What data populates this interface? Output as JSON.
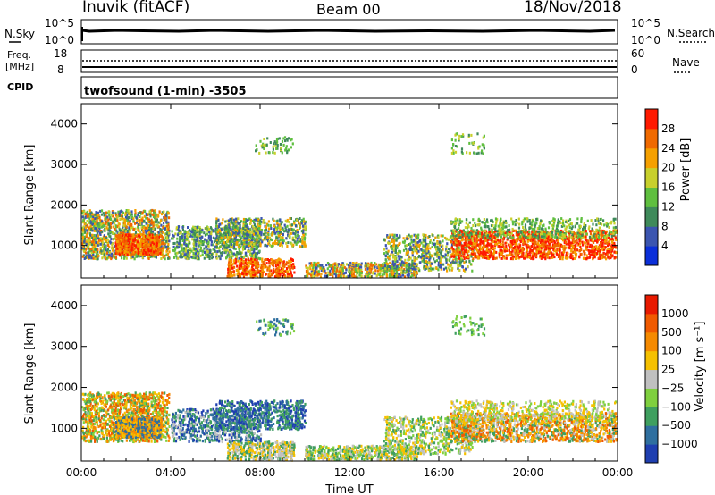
{
  "header": {
    "station": "Inuvik (fitACF)",
    "beam": "Beam 00",
    "date": "18/Nov/2018"
  },
  "top_panels": {
    "nsky_label": "N.Sky",
    "nsky_ticks": [
      "10^5",
      "10^0"
    ],
    "nsearch_label": "N.Search",
    "nsearch_ticks": [
      "10^5",
      "10^0"
    ],
    "freq_label": "Freq.",
    "freq_unit": "[MHz]",
    "freq_ticks": [
      "18",
      "8"
    ],
    "nave_label": "Nave",
    "nave_ticks": [
      "60",
      "0"
    ],
    "cpid_label": "CPID",
    "cpid_value": "twofsound (1-min) -3505"
  },
  "chart_data": [
    {
      "type": "heatmap",
      "name": "power-panel",
      "ylabel": "Slant Range [km]",
      "xlabel": "",
      "x_ticks": [
        "00:00",
        "04:00",
        "08:00",
        "12:00",
        "16:00",
        "20:00",
        "00:00"
      ],
      "y_ticks": [
        "1000",
        "2000",
        "3000",
        "4000"
      ],
      "ylim": [
        200,
        4500
      ],
      "colorbar": {
        "label": "Power [dB]",
        "ticks": [
          "4",
          "8",
          "12",
          "16",
          "20",
          "24",
          "28"
        ],
        "colors": [
          "#0b2fd9",
          "#3b55b0",
          "#3f8a5a",
          "#5fbf3f",
          "#c8d02c",
          "#f5a000",
          "#f06a00",
          "#ff1a00"
        ]
      }
    },
    {
      "type": "heatmap",
      "name": "velocity-panel",
      "ylabel": "Slant Range [km]",
      "xlabel": "Time UT",
      "x_ticks": [
        "00:00",
        "04:00",
        "08:00",
        "12:00",
        "16:00",
        "20:00",
        "00:00"
      ],
      "y_ticks": [
        "1000",
        "2000",
        "3000",
        "4000"
      ],
      "ylim": [
        200,
        4500
      ],
      "colorbar": {
        "label": "Velocity [m s⁻¹]",
        "ticks": [
          "1000",
          "500",
          "100",
          "25",
          "−25",
          "−100",
          "−500",
          "−1000"
        ],
        "colors": [
          "#1f3fb0",
          "#2f6f9f",
          "#3f9f5f",
          "#7fd03f",
          "#c0c0c0",
          "#f5c000",
          "#f58a00",
          "#f05a00",
          "#e81a00"
        ]
      }
    }
  ]
}
